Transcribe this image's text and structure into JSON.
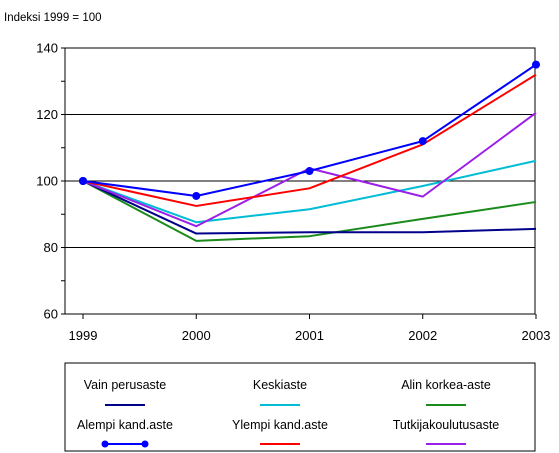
{
  "chart_data": {
    "type": "line",
    "title": "Indeksi 1999 = 100",
    "xlabel": "",
    "ylabel": "",
    "x": [
      "1999",
      "2000",
      "2001",
      "2002",
      "2003"
    ],
    "ylim": [
      60,
      140
    ],
    "yticks": [
      60,
      80,
      100,
      120,
      140
    ],
    "grid": true,
    "legend_position": "bottom",
    "series": [
      {
        "name": "Vain perusaste",
        "color": "#00008b",
        "markers": false,
        "values": [
          100,
          84.2,
          84.6,
          84.6,
          85.6
        ]
      },
      {
        "name": "Keskiaste",
        "color": "#00bcd4",
        "markers": false,
        "values": [
          100,
          87.6,
          91.5,
          98.5,
          106.1
        ]
      },
      {
        "name": "Alin korkea-aste",
        "color": "#1a8a1a",
        "markers": false,
        "values": [
          100,
          82.0,
          83.4,
          88.6,
          93.7
        ]
      },
      {
        "name": "Alempi kand.aste",
        "color": "#0000ff",
        "markers": true,
        "values": [
          100,
          95.5,
          103.0,
          112.0,
          135.0
        ]
      },
      {
        "name": "Ylempi kand.aste",
        "color": "#ff0000",
        "markers": false,
        "values": [
          100,
          92.5,
          97.8,
          111.0,
          132.0
        ]
      },
      {
        "name": "Tutkijakoulutusaste",
        "color": "#9b1fe8",
        "markers": false,
        "values": [
          100,
          86.4,
          103.8,
          95.3,
          120.5
        ]
      }
    ]
  }
}
